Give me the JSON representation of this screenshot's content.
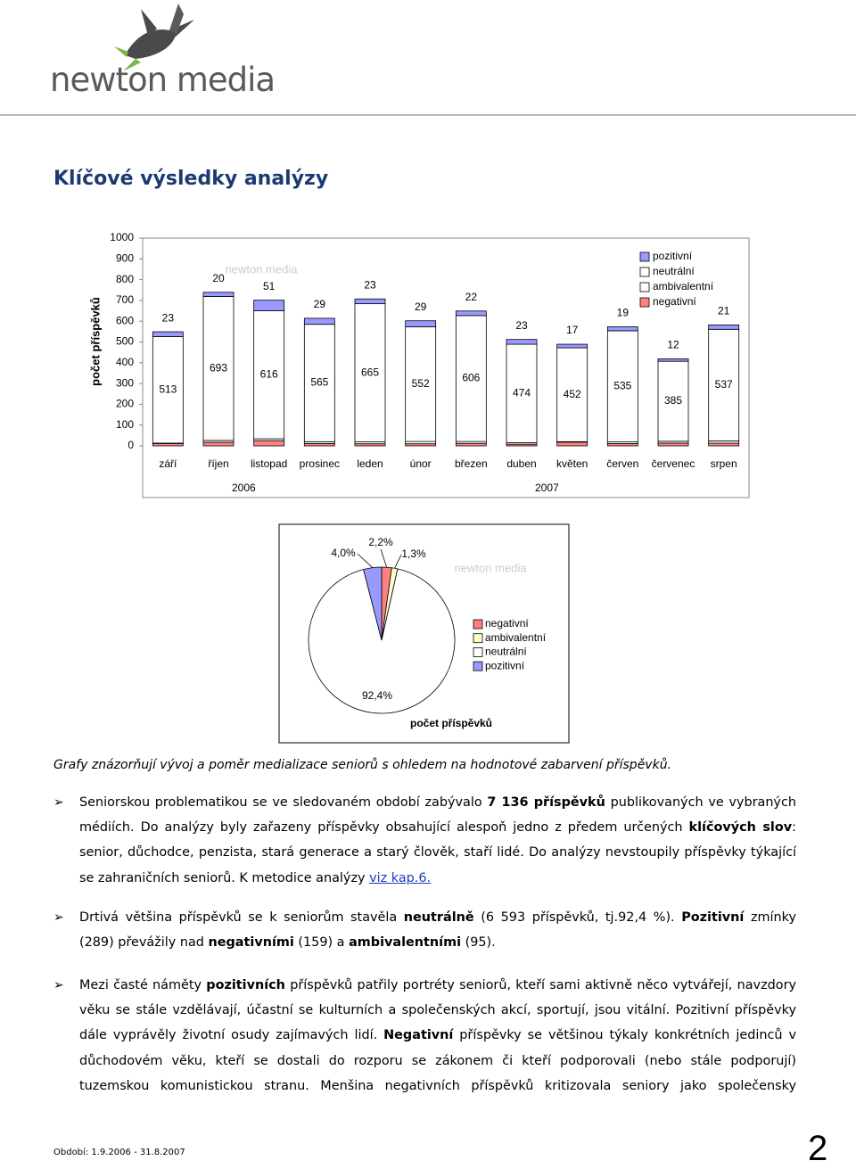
{
  "header": {
    "logo": "newton media"
  },
  "heading": "Klíčové výsledky analýzy",
  "chart_data": [
    {
      "type": "bar",
      "stacked": true,
      "ylabel": "počet příspěvků",
      "categories": [
        "září",
        "říjen",
        "listopad",
        "prosinec",
        "leden",
        "únor",
        "březen",
        "duben",
        "květen",
        "červen",
        "červenec",
        "srpen"
      ],
      "x_groups": [
        "2006",
        "2007"
      ],
      "ylim": [
        0,
        1000
      ],
      "yticks": [
        0,
        100,
        200,
        300,
        400,
        500,
        600,
        700,
        800,
        900,
        1000
      ],
      "legend": "top-right",
      "series": [
        {
          "name": "negativní",
          "color": "#ff8080",
          "values": [
            11,
            17,
            25,
            11,
            10,
            10,
            12,
            8,
            18,
            11,
            13,
            13
          ]
        },
        {
          "name": "ambivalentní",
          "color": "#ffffff",
          "values": [
            2,
            9,
            9,
            9,
            9,
            11,
            9,
            7,
            2,
            8,
            9,
            11
          ]
        },
        {
          "name": "neutrální",
          "color": "#ffffff",
          "values": [
            513,
            693,
            616,
            565,
            665,
            552,
            606,
            474,
            452,
            535,
            385,
            537
          ]
        },
        {
          "name": "pozitivní",
          "color": "#9999ff",
          "values": [
            23,
            20,
            51,
            29,
            23,
            29,
            22,
            23,
            17,
            19,
            12,
            21
          ]
        }
      ]
    },
    {
      "type": "pie",
      "title": "počet příspěvků",
      "categories": [
        "negativní",
        "ambivalentní",
        "neutrální",
        "pozitivní"
      ],
      "values": [
        2.2,
        1.3,
        92.4,
        4.0
      ],
      "value_labels": [
        "2,2%",
        "1,3%",
        "92,4%",
        "4,0%"
      ],
      "colors": [
        "#ff8080",
        "#ffffcc",
        "#ffffff",
        "#9999ff"
      ]
    }
  ],
  "caption": "Grafy znázorňují vývoj a poměr medializace seniorů s ohledem na hodnotové zabarvení příspěvků.",
  "bullets": [
    {
      "runs": [
        {
          "text": "Seniorskou problematikou se ve sledovaném období zabývalo ",
          "bold": false
        },
        {
          "text": "7 136 příspěvků",
          "bold": true
        },
        {
          "text": " publikovaných ve vybraných médiích. Do analýzy byly zařazeny příspěvky obsahující alespoň jedno z předem určených ",
          "bold": false
        },
        {
          "text": "klíčových slov",
          "bold": true
        },
        {
          "text": ": senior, důchodce, penzista, stará generace a starý člověk, staří lidé. Do analýzy nevstoupily příspěvky týkající se zahraničních seniorů. K metodice analýzy ",
          "bold": false
        },
        {
          "text": "viz kap.6.",
          "bold": false,
          "link": true
        }
      ]
    },
    {
      "runs": [
        {
          "text": "Drtivá většina příspěvků se k seniorům stavěla ",
          "bold": false
        },
        {
          "text": "neutrálně",
          "bold": true
        },
        {
          "text": " (6 593 příspěvků, tj.92,4 %). ",
          "bold": false
        },
        {
          "text": "Pozitivní",
          "bold": true
        },
        {
          "text": " zmínky (289) převážily nad ",
          "bold": false
        },
        {
          "text": "negativními",
          "bold": true
        },
        {
          "text": " (159) a ",
          "bold": false
        },
        {
          "text": "ambivalentními",
          "bold": true
        },
        {
          "text": " (95).",
          "bold": false
        }
      ]
    },
    {
      "runs": [
        {
          "text": "Mezi časté náměty ",
          "bold": false
        },
        {
          "text": "pozitivních",
          "bold": true
        },
        {
          "text": " příspěvků patřily portréty seniorů, kteří sami aktivně něco vytvářejí, navzdory věku se stále vzdělávají, účastní se kulturních a společenských akcí, sportují, jsou vitální. Pozitivní příspěvky dále vyprávěly životní osudy zajímavých lidí. ",
          "bold": false
        },
        {
          "text": "Negativní",
          "bold": true
        },
        {
          "text": " příspěvky se většinou týkaly konkrétních jedinců v důchodovém věku, kteří se dostali do rozporu se zákonem či kteří podporovali (nebo stále podporují) tuzemskou komunistickou stranu. Menšina negativních příspěvků kritizovala seniory jako společensky",
          "bold": false
        }
      ]
    }
  ],
  "footer": {
    "period": "Období: 1.9.2006 - 31.8.2007",
    "page": "2"
  }
}
